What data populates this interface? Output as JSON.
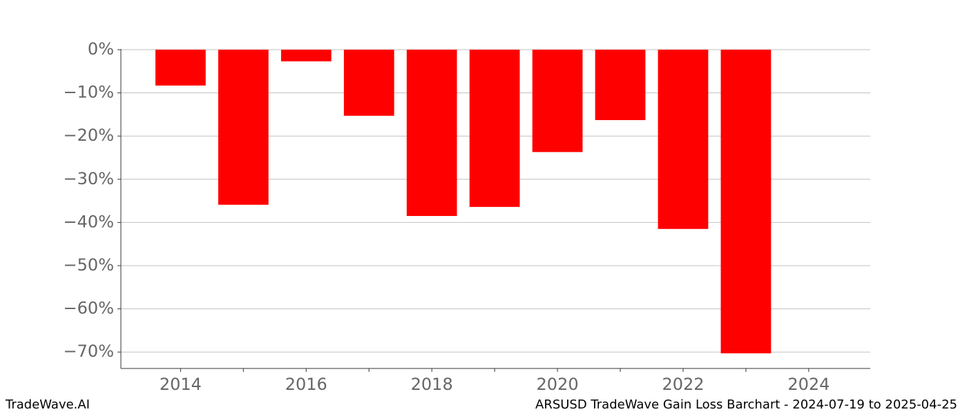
{
  "chart_data": {
    "type": "bar",
    "x": [
      2014,
      2015,
      2016,
      2017,
      2018,
      2019,
      2020,
      2021,
      2022,
      2023
    ],
    "values": [
      -8.3,
      -35.9,
      -2.7,
      -15.3,
      -38.5,
      -36.4,
      -23.7,
      -16.3,
      -41.5,
      -70.3
    ],
    "color": "#ff0000",
    "xlim": [
      2013.05,
      2024.98
    ],
    "xticks": [
      2014,
      2016,
      2018,
      2020,
      2022,
      2024
    ],
    "xminor_ticks": [
      2015,
      2017,
      2019,
      2021,
      2023
    ],
    "ylim": [
      -73.8,
      0
    ],
    "yticks": [
      {
        "value": 0,
        "label": "0%"
      },
      {
        "value": -10,
        "label": "−10%"
      },
      {
        "value": -20,
        "label": "−20%"
      },
      {
        "value": -30,
        "label": "−30%"
      },
      {
        "value": -40,
        "label": "−40%"
      },
      {
        "value": -50,
        "label": "−50%"
      },
      {
        "value": -60,
        "label": "−60%"
      },
      {
        "value": -70,
        "label": "−70%"
      }
    ],
    "grid": true
  },
  "footer": {
    "left": "TradeWave.AI",
    "right": "ARSUSD TradeWave Gain Loss Barchart - 2024-07-19 to 2025-04-25"
  }
}
